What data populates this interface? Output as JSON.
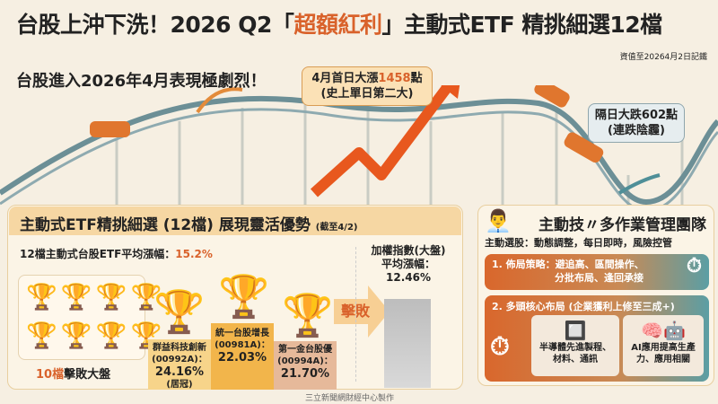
{
  "title": {
    "pre": "台股上沖下洗！2026 Q2「",
    "highlight": "超額紅利",
    "post": "」主動式ETF 精挑細選12檔"
  },
  "note": "資值至20264月2日記鐵",
  "subtitle": "台股進入2026年4月表現極劇烈！",
  "callout_up": {
    "pre": "4月首日大漲",
    "num": "1458",
    "post": "點",
    "line2": "(史上單日第二大)"
  },
  "callout_down": {
    "line1": "隔日大跌602點",
    "line2": "(連跌陰霾)"
  },
  "left_panel": {
    "heading": "主動式ETF精挑細選 (12檔) 展現靈活優勢",
    "heading_note": "(截至4/2)",
    "avg_label": "12檔主動式台股ETF平均漲幅：",
    "avg_value": "15.2%",
    "beat_count": "10檔",
    "beat_label": "擊敗大盤",
    "podium": [
      {
        "rank": "2.",
        "name": "群益科技創新",
        "code": "(00992A)：",
        "pct": "24.16%",
        "note": "(居冠)"
      },
      {
        "rank": "1.",
        "name": "統一台股增長",
        "code": "(00981A)：",
        "pct": "22.03%"
      },
      {
        "rank": "3.",
        "name": "第一金台股優",
        "code": "(00994A)：",
        "pct": "21.70%"
      }
    ],
    "beat_arrow": "擊敗",
    "index": {
      "line1": "加權指數(大盤)",
      "line2": "平均漲幅：",
      "value": "12.46%"
    }
  },
  "right_panel": {
    "title": "主動技〃多作業管理團隊",
    "subtitle": "主動選股：動態調整，每日即時，風險控管",
    "box1": {
      "line1": "1. 佈局策略：避追高、區間操作、",
      "line2": "分批布局、逢回承接"
    },
    "box2": {
      "title": "2. 多頭核心布局 (企業獲利上修至三成+)",
      "card1": {
        "line1": "半導體先進製程、",
        "line2": "材料、通訊"
      },
      "card2": {
        "line1": "AI應用提高生產",
        "line2": "力、應用相關"
      }
    }
  },
  "footer": "三立新聞網財經中心製作",
  "colors": {
    "accent": "#d9622b",
    "background": "#f6efe2",
    "teal": "#5b9ea4"
  }
}
